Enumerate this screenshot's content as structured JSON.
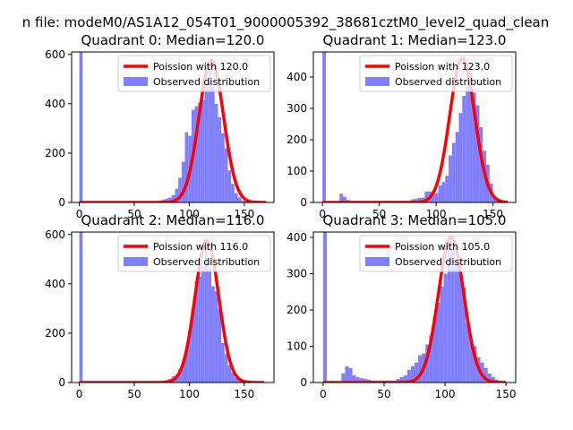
{
  "figure": {
    "suptitle": "n file: modeM0/AS1A12_054T01_9000005392_38681cztM0_level2_quad_clean"
  },
  "colors": {
    "histogram": "#7f7fff",
    "poisson_line": "#ff0000",
    "axes": "#000000"
  },
  "chart_data": [
    {
      "type": "bar",
      "title": "Quadrant 0: Median=120.0",
      "median": 120.0,
      "xlim": [
        -7,
        177
      ],
      "ylim": [
        0,
        610
      ],
      "xticks": [
        "0",
        "50",
        "100",
        "150"
      ],
      "yticks": [
        "0",
        "200",
        "400",
        "600"
      ],
      "legend_placement": "upper right",
      "series": [
        {
          "name": "Poission with 120.0",
          "kind": "line",
          "mean": 120.0,
          "peak": 575,
          "sigma": 11.2,
          "x_range": [
            0,
            170
          ]
        },
        {
          "name": "Observed distribution",
          "kind": "histogram",
          "bin_width": 3.0,
          "x": [
            0,
            3,
            6,
            9,
            12,
            15,
            18,
            21,
            24,
            27,
            30,
            33,
            36,
            39,
            42,
            45,
            48,
            51,
            54,
            57,
            60,
            63,
            66,
            69,
            72,
            75,
            78,
            81,
            84,
            87,
            90,
            93,
            96,
            99,
            102,
            105,
            108,
            111,
            114,
            117,
            120,
            123,
            126,
            129,
            132,
            135,
            138,
            141,
            144,
            147,
            150,
            153,
            156,
            159,
            162,
            165
          ],
          "values": [
            610,
            0,
            0,
            0,
            0,
            0,
            0,
            0,
            0,
            0,
            0,
            0,
            0,
            0,
            0,
            0,
            0,
            0,
            0,
            0,
            0,
            0,
            0,
            0,
            8,
            12,
            15,
            20,
            30,
            55,
            100,
            165,
            285,
            270,
            375,
            390,
            405,
            415,
            480,
            570,
            470,
            400,
            345,
            280,
            220,
            130,
            75,
            38,
            20,
            8,
            5,
            0,
            0,
            0,
            0,
            0
          ]
        }
      ]
    },
    {
      "type": "bar",
      "title": "Quadrant 1: Median=123.0",
      "median": 123.0,
      "xlim": [
        -8,
        170
      ],
      "ylim": [
        0,
        480
      ],
      "xticks": [
        "0",
        "50",
        "100",
        "150"
      ],
      "yticks": [
        "0",
        "100",
        "200",
        "300",
        "400"
      ],
      "legend_placement": "upper right",
      "series": [
        {
          "name": "Poission with 123.0",
          "kind": "line",
          "mean": 123.0,
          "peak": 460,
          "sigma": 11.0,
          "x_range": [
            0,
            163
          ]
        },
        {
          "name": "Observed distribution",
          "kind": "histogram",
          "bin_width": 3.0,
          "x": [
            0,
            3,
            6,
            9,
            12,
            15,
            18,
            21,
            24,
            27,
            30,
            33,
            36,
            39,
            42,
            45,
            48,
            51,
            54,
            57,
            60,
            63,
            66,
            69,
            72,
            75,
            78,
            81,
            84,
            87,
            90,
            93,
            96,
            99,
            102,
            105,
            108,
            111,
            114,
            117,
            120,
            123,
            126,
            129,
            132,
            135,
            138,
            141,
            144,
            147,
            150,
            153,
            156,
            159
          ],
          "values": [
            480,
            0,
            0,
            0,
            0,
            28,
            18,
            8,
            5,
            5,
            5,
            5,
            5,
            5,
            5,
            5,
            5,
            5,
            5,
            5,
            5,
            5,
            5,
            5,
            5,
            5,
            10,
            12,
            15,
            15,
            35,
            35,
            30,
            30,
            55,
            65,
            85,
            150,
            190,
            225,
            285,
            340,
            400,
            420,
            350,
            310,
            240,
            165,
            120,
            60,
            20,
            10,
            5,
            5
          ]
        }
      ]
    },
    {
      "type": "bar",
      "title": "Quadrant 2: Median=116.0",
      "median": 116.0,
      "xlim": [
        -7,
        177
      ],
      "ylim": [
        0,
        610
      ],
      "xticks": [
        "0",
        "50",
        "100",
        "150"
      ],
      "yticks": [
        "0",
        "200",
        "400",
        "600"
      ],
      "legend_placement": "upper right",
      "series": [
        {
          "name": "Poission with 116.0",
          "kind": "line",
          "mean": 116.0,
          "peak": 575,
          "sigma": 10.8,
          "x_range": [
            0,
            168
          ]
        },
        {
          "name": "Observed distribution",
          "kind": "histogram",
          "bin_width": 3.0,
          "x": [
            0,
            3,
            6,
            9,
            12,
            15,
            18,
            21,
            24,
            27,
            30,
            33,
            36,
            39,
            42,
            45,
            48,
            51,
            54,
            57,
            60,
            63,
            66,
            69,
            72,
            75,
            78,
            81,
            84,
            87,
            90,
            93,
            96,
            99,
            102,
            105,
            108,
            111,
            114,
            117,
            120,
            123,
            126,
            129,
            132,
            135,
            138,
            141,
            144,
            147,
            150,
            153,
            156,
            159,
            162,
            165
          ],
          "values": [
            610,
            0,
            0,
            0,
            0,
            0,
            0,
            0,
            0,
            0,
            0,
            0,
            0,
            0,
            0,
            0,
            0,
            0,
            0,
            0,
            0,
            0,
            0,
            0,
            0,
            5,
            10,
            15,
            25,
            30,
            55,
            85,
            130,
            210,
            295,
            410,
            430,
            470,
            560,
            470,
            390,
            370,
            300,
            160,
            115,
            70,
            40,
            20,
            10,
            5,
            0,
            0,
            0,
            0,
            0,
            0
          ]
        }
      ]
    },
    {
      "type": "bar",
      "title": "Quadrant 3: Median=105.0",
      "median": 105.0,
      "xlim": [
        -8,
        158
      ],
      "ylim": [
        0,
        415
      ],
      "xticks": [
        "0",
        "50",
        "100",
        "150"
      ],
      "yticks": [
        "0",
        "100",
        "200",
        "300",
        "400"
      ],
      "legend_placement": "upper right",
      "series": [
        {
          "name": "Poission with 105.0",
          "kind": "line",
          "mean": 105.0,
          "peak": 400,
          "sigma": 10.5,
          "x_range": [
            0,
            150
          ]
        },
        {
          "name": "Observed distribution",
          "kind": "histogram",
          "bin_width": 3.0,
          "x": [
            0,
            3,
            6,
            9,
            12,
            15,
            18,
            21,
            24,
            27,
            30,
            33,
            36,
            39,
            42,
            45,
            48,
            51,
            54,
            57,
            60,
            63,
            66,
            69,
            72,
            75,
            78,
            81,
            84,
            87,
            90,
            93,
            96,
            99,
            102,
            105,
            108,
            111,
            114,
            117,
            120,
            123,
            126,
            129,
            132,
            135,
            138,
            141,
            144,
            147
          ],
          "values": [
            415,
            0,
            0,
            0,
            0,
            25,
            45,
            40,
            20,
            15,
            12,
            10,
            8,
            5,
            5,
            5,
            5,
            5,
            5,
            5,
            10,
            15,
            20,
            35,
            45,
            55,
            75,
            80,
            105,
            130,
            180,
            220,
            265,
            300,
            400,
            365,
            330,
            305,
            260,
            165,
            120,
            100,
            70,
            55,
            40,
            25,
            15,
            8,
            5,
            2
          ]
        }
      ]
    }
  ]
}
